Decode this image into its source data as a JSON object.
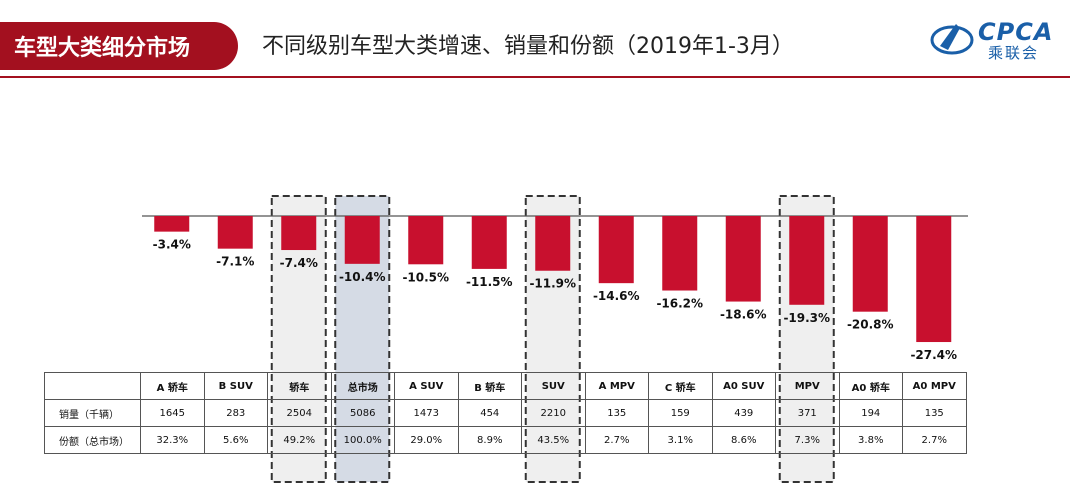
{
  "header": {
    "tag": "车型大类细分市场",
    "title": "不同级别车型大类增速、销量和份额（2019年1-3月）",
    "logo_text": "CPCA",
    "logo_sub": "乘联会"
  },
  "colors": {
    "bar": "#c8102e",
    "accent": "#a3101f",
    "highlight_box": "#efefef",
    "total_box": "#d5dbe5"
  },
  "chart_data": {
    "type": "bar",
    "categories": [
      "A 轿车",
      "B SUV",
      "轿车",
      "总市场",
      "A SUV",
      "B 轿车",
      "SUV",
      "A MPV",
      "C 轿车",
      "A0 SUV",
      "MPV",
      "A0 轿车",
      "A0 MPV"
    ],
    "values": [
      -3.4,
      -7.1,
      -7.4,
      -10.4,
      -10.5,
      -11.5,
      -11.9,
      -14.6,
      -16.2,
      -18.6,
      -19.3,
      -20.8,
      -27.4
    ],
    "data_labels": [
      "-3.4%",
      "-7.1%",
      "-7.4%",
      "-10.4%",
      "-10.5%",
      "-11.5%",
      "-11.9%",
      "-14.6%",
      "-16.2%",
      "-18.6%",
      "-19.3%",
      "-20.8%",
      "-27.4%"
    ],
    "highlighted": [
      "轿车",
      "总市场",
      "SUV",
      "MPV"
    ],
    "ylim": [
      -30,
      0
    ],
    "grid": false,
    "legend": "none"
  },
  "table": {
    "rows": [
      {
        "label": "销量（千辆）",
        "values": [
          "1645",
          "283",
          "2504",
          "5086",
          "1473",
          "454",
          "2210",
          "135",
          "159",
          "439",
          "371",
          "194",
          "135"
        ]
      },
      {
        "label": "份额（总市场）",
        "values": [
          "32.3%",
          "5.6%",
          "49.2%",
          "100.0%",
          "29.0%",
          "8.9%",
          "43.5%",
          "2.7%",
          "3.1%",
          "8.6%",
          "7.3%",
          "3.8%",
          "2.7%"
        ]
      }
    ]
  }
}
